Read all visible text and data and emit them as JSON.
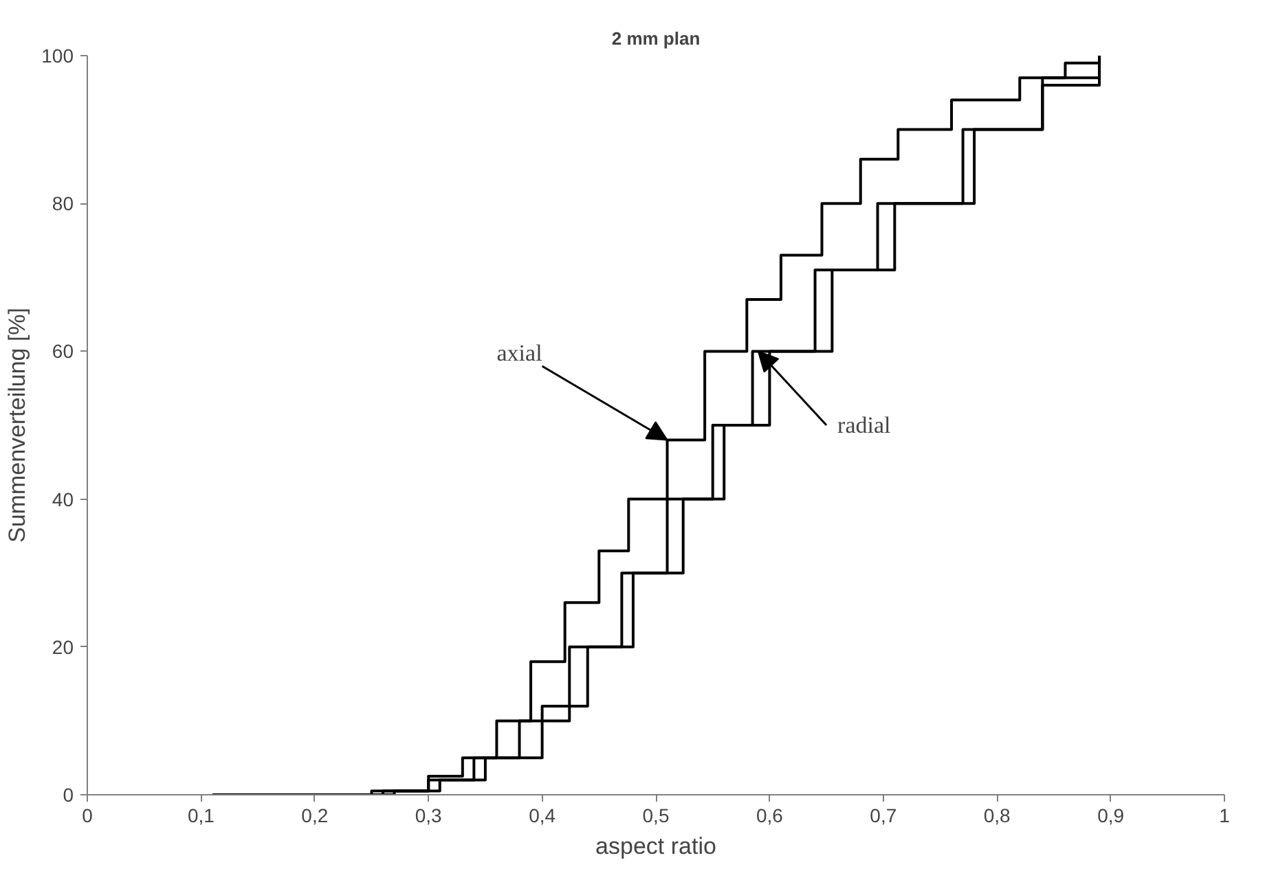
{
  "chart_data": {
    "type": "step",
    "title": "2 mm plan",
    "xlabel": "aspect ratio",
    "ylabel": "Summenverteilung [%]",
    "xlim": [
      0,
      1
    ],
    "ylim": [
      0,
      100
    ],
    "xticks": [
      0,
      {
        "value": 0.1,
        "label": "0,1"
      },
      {
        "value": 0.2,
        "label": "0,2"
      },
      {
        "value": 0.3,
        "label": "0,3"
      },
      {
        "value": 0.4,
        "label": "0,4"
      },
      {
        "value": 0.5,
        "label": "0,5"
      },
      {
        "value": 0.6,
        "label": "0,6"
      },
      {
        "value": 0.7,
        "label": "0,7"
      },
      {
        "value": 0.8,
        "label": "0,8"
      },
      {
        "value": 0.9,
        "label": "0,9"
      },
      1
    ],
    "yticks": [
      0,
      20,
      40,
      60,
      80,
      100
    ],
    "grid": false,
    "series": [
      {
        "color": "#000000",
        "x": [
          0.11,
          0.21,
          0.25,
          0.3,
          0.33,
          0.36,
          0.39,
          0.42,
          0.45,
          0.476,
          0.51,
          0.543,
          0.58,
          0.61,
          0.646,
          0.68,
          0.713,
          0.76,
          0.82,
          0.86,
          0.89
        ],
        "values": [
          0,
          0,
          0.5,
          2.5,
          5,
          10,
          18,
          26,
          33,
          40,
          48,
          60,
          67,
          73,
          80,
          86,
          90,
          94,
          97,
          99,
          100
        ]
      },
      {
        "color": "#000000",
        "x": [
          0.22,
          0.26,
          0.3,
          0.34,
          0.38,
          0.424,
          0.47,
          0.51,
          0.55,
          0.585,
          0.64,
          0.695,
          0.77,
          0.84,
          0.89
        ],
        "values": [
          0,
          0.5,
          2,
          5,
          10,
          20,
          30,
          40,
          50,
          60,
          71,
          80,
          90,
          97,
          100
        ]
      },
      {
        "color": "#000000",
        "x": [
          0.22,
          0.27,
          0.31,
          0.35,
          0.4,
          0.44,
          0.48,
          0.524,
          0.56,
          0.6,
          0.655,
          0.71,
          0.78,
          0.84,
          0.89
        ],
        "values": [
          0,
          0.5,
          2,
          5,
          12,
          20,
          30,
          40,
          50,
          60,
          71,
          80,
          90,
          96,
          100
        ]
      }
    ],
    "annotations": [
      {
        "text": "axial",
        "x": 0.51,
        "y": 48
      },
      {
        "text": "radial",
        "x": 0.59,
        "y": 60
      }
    ]
  }
}
